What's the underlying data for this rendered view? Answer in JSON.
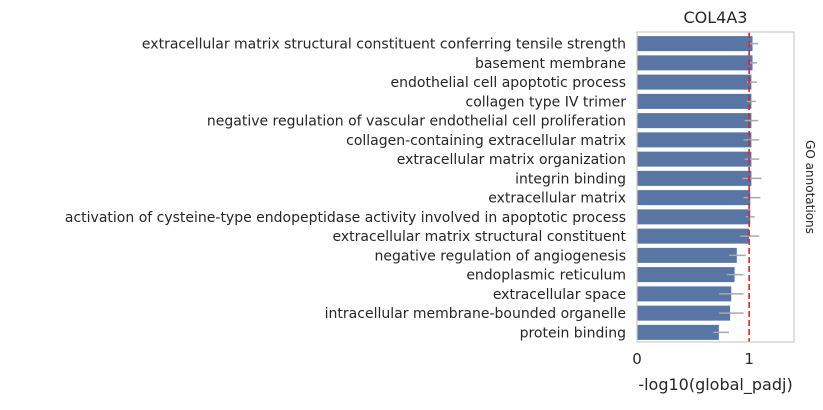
{
  "chart_data": {
    "type": "bar",
    "orientation": "horizontal",
    "title": "COL4A3",
    "xlabel": "-log10(global_padj)",
    "side_label": "GO annotations",
    "xlim": [
      0,
      1.4
    ],
    "xticks": [
      0,
      1
    ],
    "threshold_line": 1,
    "grid": false,
    "bar_color": "#5875a4",
    "error_color": "#a9a9a9",
    "threshold_color": "#d62728",
    "categories": [
      "extracellular matrix structural constituent conferring tensile strength",
      "basement membrane",
      "endothelial cell apoptotic process",
      "collagen type IV trimer",
      "negative regulation of vascular endothelial cell proliferation",
      "collagen-containing extracellular matrix",
      "extracellular matrix organization",
      "integrin binding",
      "extracellular matrix",
      "activation of cysteine-type endopeptidase activity involved in apoptotic process",
      "extracellular matrix structural constituent",
      "negative regulation of angiogenesis",
      "endoplasmic reticulum",
      "extracellular space",
      "intracellular membrane-bounded organelle",
      "protein binding"
    ],
    "values": [
      1.03,
      1.03,
      1.02,
      1.02,
      1.02,
      1.02,
      1.02,
      1.02,
      1.01,
      1.01,
      1.0,
      0.89,
      0.87,
      0.84,
      0.83,
      0.73
    ],
    "error_low": [
      0.99,
      1.0,
      0.98,
      0.98,
      0.96,
      0.95,
      0.96,
      0.94,
      0.95,
      0.97,
      0.92,
      0.82,
      0.8,
      0.73,
      0.73,
      0.68
    ],
    "error_high": [
      1.08,
      1.07,
      1.07,
      1.06,
      1.08,
      1.09,
      1.09,
      1.11,
      1.1,
      1.05,
      1.09,
      0.97,
      0.95,
      0.95,
      0.95,
      0.82
    ]
  }
}
